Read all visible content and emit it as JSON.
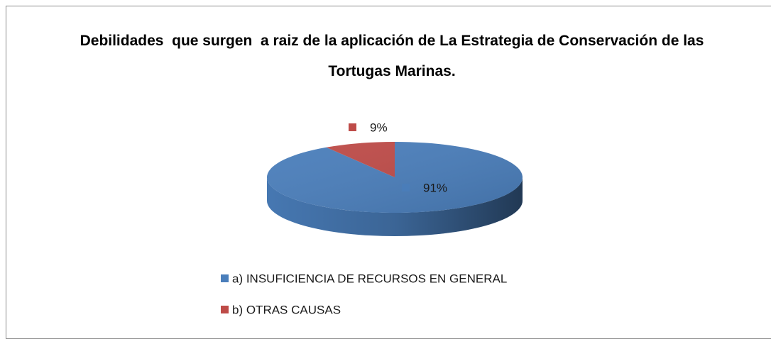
{
  "chart_data": {
    "type": "pie",
    "title": "Debilidades  que surgen  a raiz de la aplicación de La Estrategia de Conservación de las Tortugas Marinas.",
    "categories": [
      "a) INSUFICIENCIA DE RECURSOS EN GENERAL",
      "b) OTRAS CAUSAS"
    ],
    "values": [
      91,
      9
    ],
    "value_labels": [
      "91%",
      "9%"
    ],
    "colors": [
      "#4a7ebb",
      "#be4b48"
    ],
    "legend": "bottom"
  }
}
